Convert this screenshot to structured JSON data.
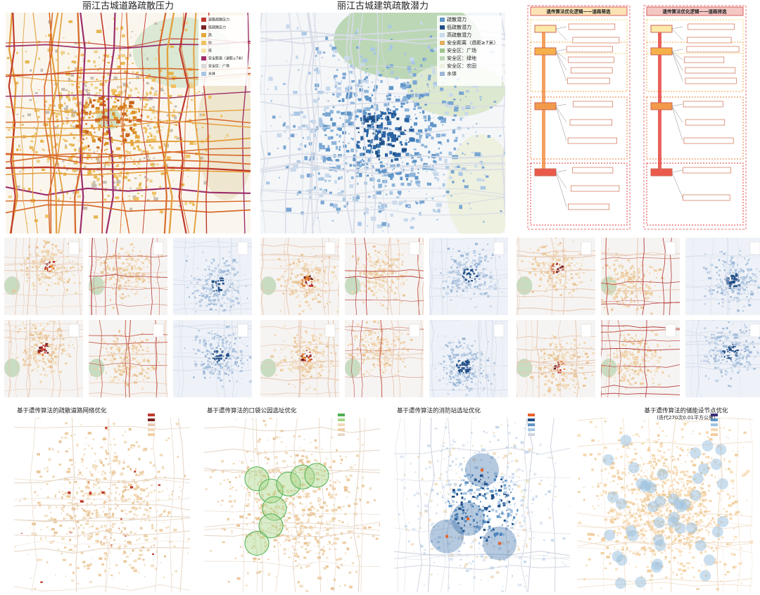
{
  "maps": [
    {
      "title": "丽江古城道路疏散压力",
      "legend": [
        "道路疏散压力",
        "低疏散压力",
        "高",
        "中",
        "低",
        "安全距离（退距≥7米）",
        "安全区：广场",
        "水体"
      ]
    },
    {
      "title": "丽江古城建筑疏散潜力",
      "legend": [
        "疏散潜力",
        "低疏散潜力",
        "高疏散潜力",
        "安全距离（退距≥7米）",
        "安全区：广场",
        "安全区：绿地",
        "安全区：农田",
        "水体"
      ]
    }
  ],
  "flowcharts": [
    {
      "title": "遗传算法优化逻辑——道路筛选"
    },
    {
      "title": "遗传算法优化逻辑——道路择选"
    }
  ],
  "bottom_maps": [
    {
      "title": "基于遗传算法的疏散道路网络优化"
    },
    {
      "title": "基于遗传算法的口袋公园选址优化"
    },
    {
      "title": "基于遗传算法的消防站选址优化"
    },
    {
      "title": "基于遗传算法的储能设节点优化",
      "subtitle": "(迭代270次0.01平方公里)"
    }
  ]
}
